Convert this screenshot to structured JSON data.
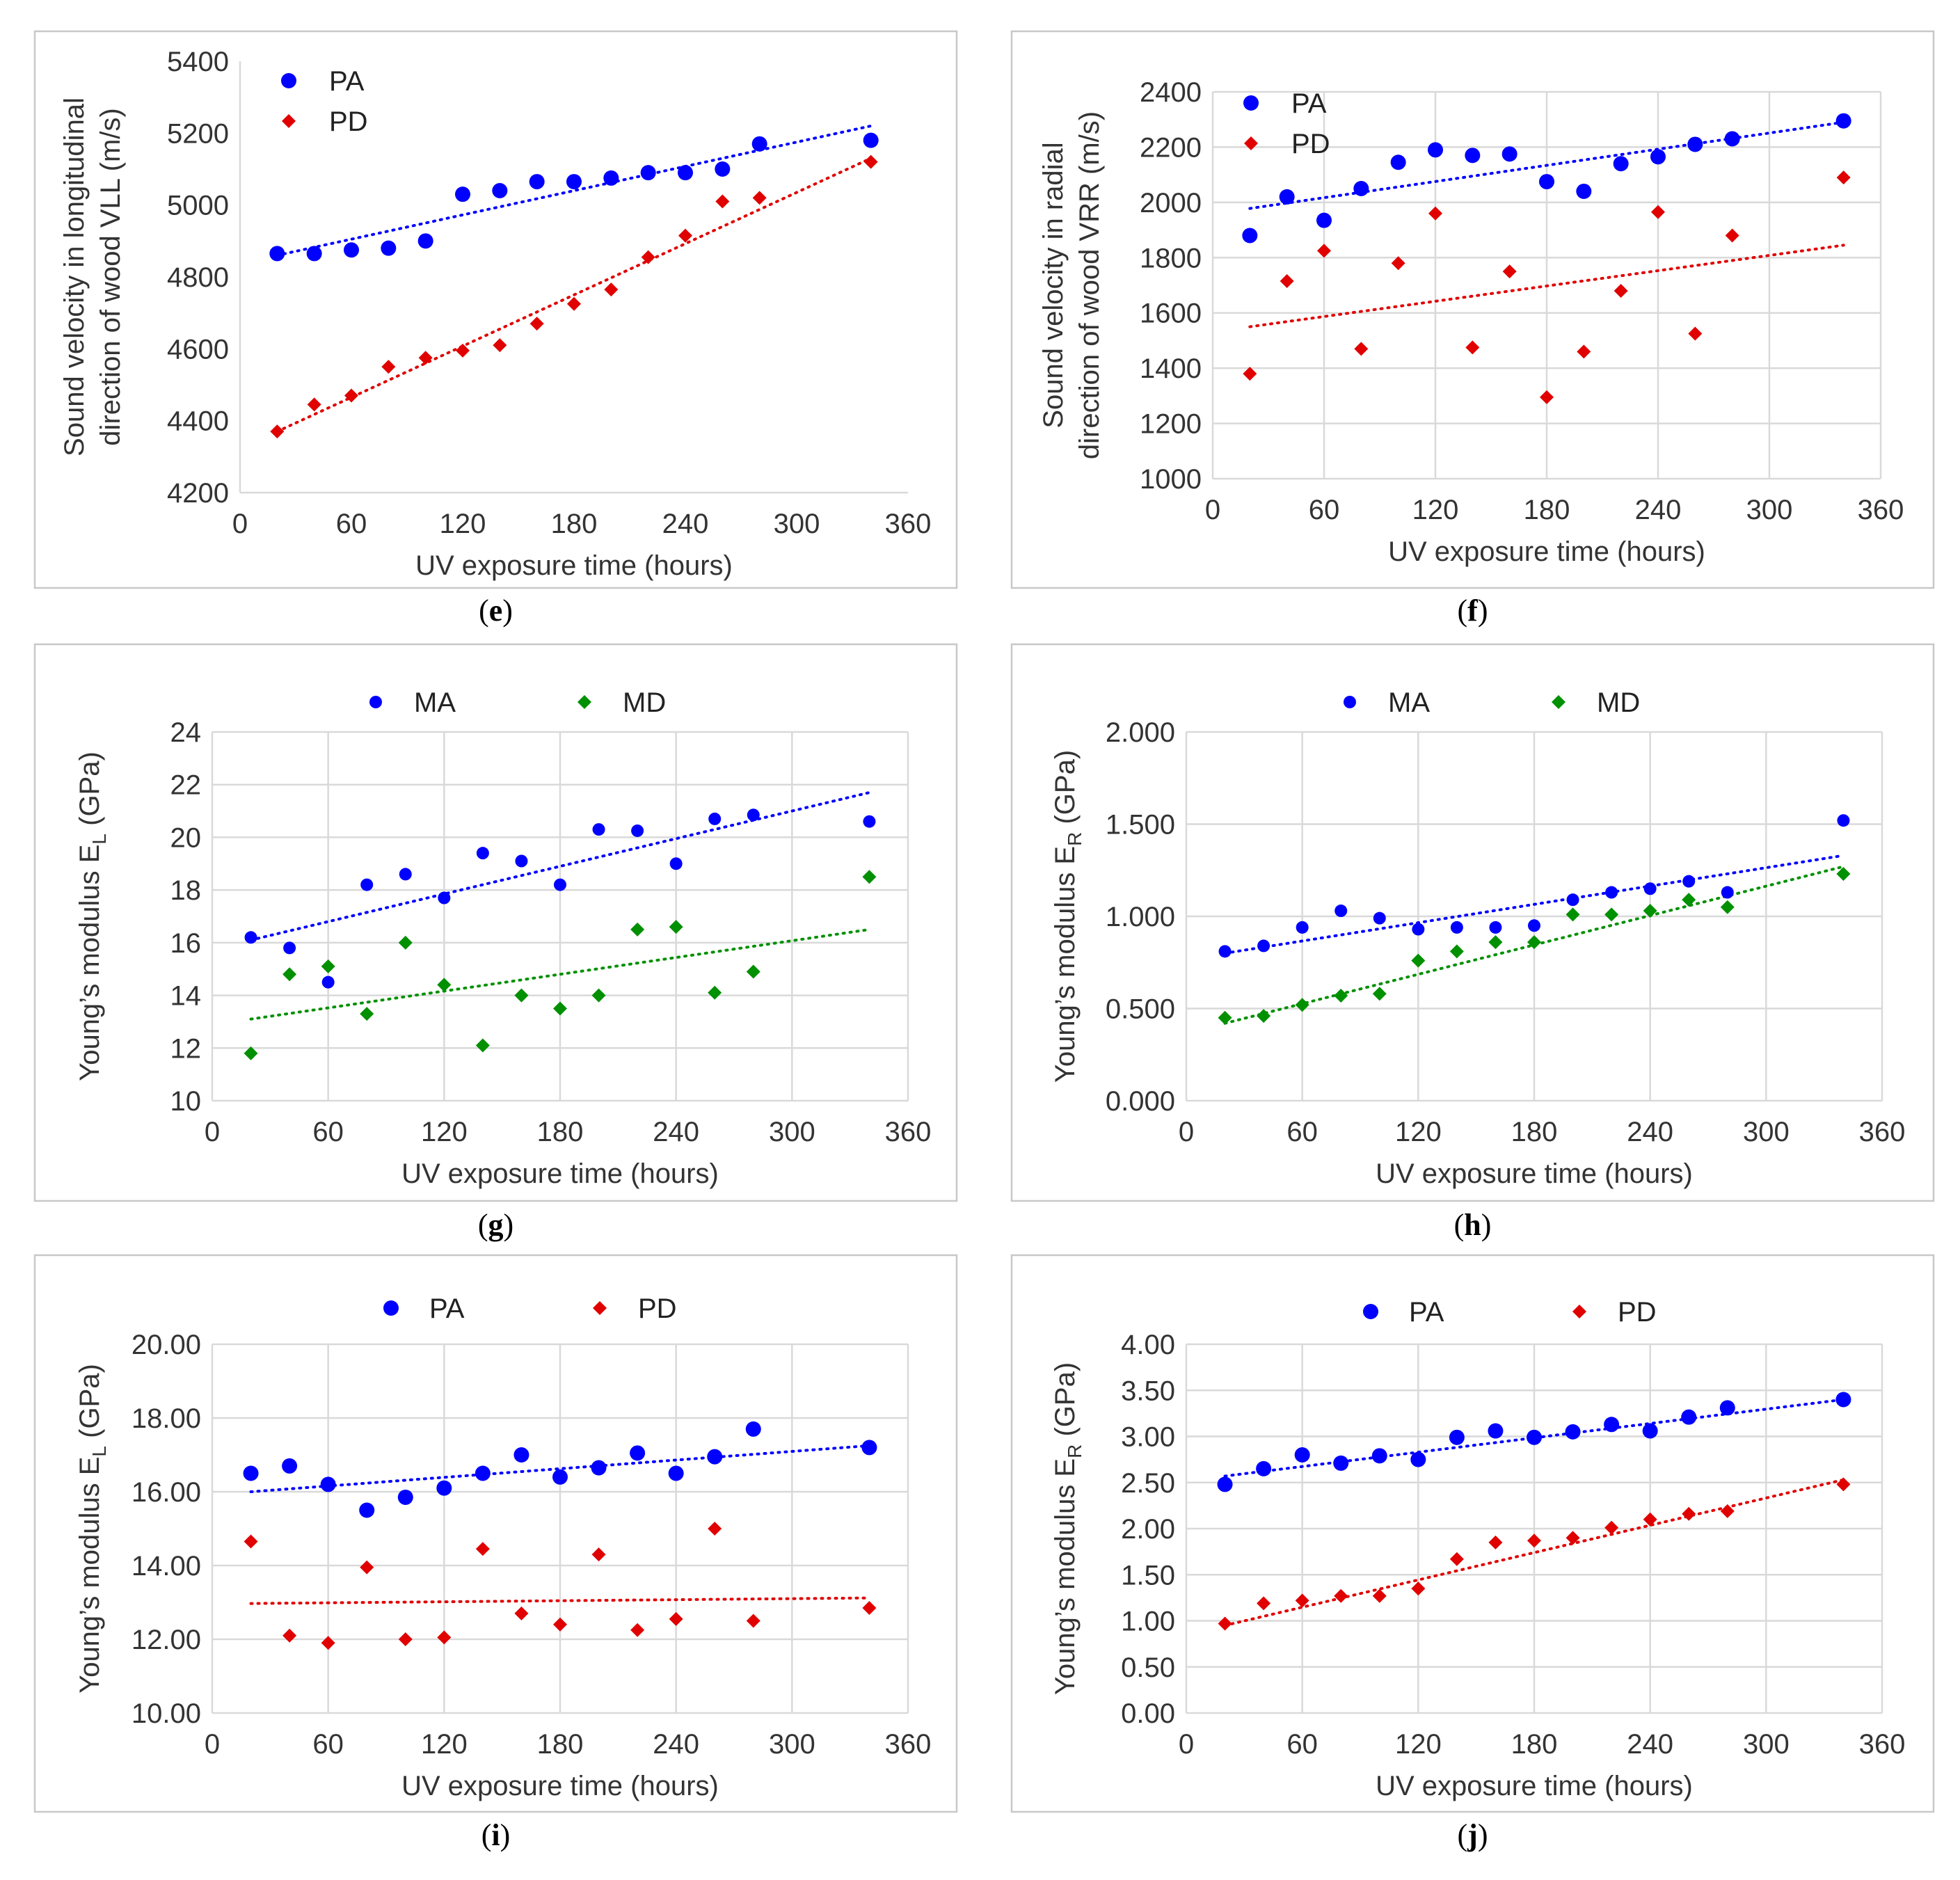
{
  "chart_data": [
    {
      "panel": "e",
      "caption_letter": "e",
      "type": "scatter",
      "xlabel": "UV exposure time (hours)",
      "ylabel": [
        "Sound velocity in longitudinal",
        "direction of wood VLL (m/s)"
      ],
      "xlim": [
        0,
        360
      ],
      "xticks": [
        0,
        60,
        120,
        180,
        240,
        300,
        360
      ],
      "ylim": [
        4200,
        5400
      ],
      "yticks": [
        4200,
        4400,
        4600,
        4800,
        5000,
        5200,
        5400
      ],
      "grid": false,
      "legend_position": "top-left-vertical",
      "series": [
        {
          "name": "PA",
          "color": "#0000ff",
          "marker": "circle",
          "x": [
            20,
            40,
            60,
            80,
            100,
            120,
            140,
            160,
            180,
            200,
            220,
            240,
            260,
            280,
            340
          ],
          "y": [
            4865,
            4865,
            4875,
            4880,
            4900,
            5030,
            5040,
            5065,
            5065,
            5075,
            5090,
            5090,
            5100,
            5170,
            5180
          ],
          "trend": [
            [
              20,
              4860
            ],
            [
              340,
              5220
            ]
          ]
        },
        {
          "name": "PD",
          "color": "#e00000",
          "marker": "diamond",
          "x": [
            20,
            40,
            60,
            80,
            100,
            120,
            140,
            160,
            180,
            200,
            220,
            240,
            260,
            280,
            340
          ],
          "y": [
            4370,
            4445,
            4470,
            4550,
            4575,
            4595,
            4610,
            4670,
            4725,
            4765,
            4855,
            4915,
            5010,
            5020,
            5120
          ],
          "trend": [
            [
              20,
              4370
            ],
            [
              340,
              5130
            ]
          ]
        }
      ]
    },
    {
      "panel": "f",
      "caption_letter": "f",
      "type": "scatter",
      "xlabel": "UV exposure time (hours)",
      "ylabel": [
        "Sound velocity in radial",
        "direction of wood VRR (m/s)"
      ],
      "xlim": [
        0,
        360
      ],
      "xticks": [
        0,
        60,
        120,
        180,
        240,
        300,
        360
      ],
      "ylim": [
        1000,
        2400
      ],
      "yticks": [
        1000,
        1200,
        1400,
        1600,
        1800,
        2000,
        2200,
        2400
      ],
      "grid": true,
      "legend_position": "top-left-vertical",
      "series": [
        {
          "name": "PA",
          "color": "#0000ff",
          "marker": "circle",
          "x": [
            20,
            40,
            60,
            80,
            100,
            120,
            140,
            160,
            180,
            200,
            220,
            240,
            260,
            280,
            340
          ],
          "y": [
            1880,
            2020,
            1935,
            2050,
            2145,
            2190,
            2170,
            2175,
            2075,
            2040,
            2140,
            2165,
            2210,
            2230,
            2295
          ],
          "trend": [
            [
              20,
              1978
            ],
            [
              340,
              2290
            ]
          ]
        },
        {
          "name": "PD",
          "color": "#e00000",
          "marker": "diamond",
          "x": [
            20,
            40,
            60,
            80,
            100,
            120,
            140,
            160,
            180,
            200,
            220,
            240,
            260,
            280,
            340
          ],
          "y": [
            1380,
            1715,
            1825,
            1470,
            1780,
            1960,
            1475,
            1750,
            1295,
            1460,
            1680,
            1965,
            1525,
            1880,
            2090
          ],
          "trend": [
            [
              20,
              1550
            ],
            [
              340,
              1845
            ]
          ]
        }
      ]
    },
    {
      "panel": "g",
      "caption_letter": "g",
      "type": "scatter",
      "xlabel": "UV exposure time (hours)",
      "ylabel": [
        "Young’s modulus E",
        "L",
        " (GPa)"
      ],
      "xlim": [
        0,
        360
      ],
      "xticks": [
        0,
        60,
        120,
        180,
        240,
        300,
        360
      ],
      "ylim": [
        10,
        24
      ],
      "yticks": [
        10,
        12,
        14,
        16,
        18,
        20,
        22,
        24
      ],
      "grid": true,
      "legend_position": "top-horizontal",
      "series": [
        {
          "name": "MA",
          "color": "#0000ff",
          "marker": "circle-small",
          "x": [
            20,
            40,
            60,
            80,
            100,
            120,
            140,
            160,
            180,
            200,
            220,
            240,
            260,
            280,
            340
          ],
          "y": [
            16.2,
            15.8,
            14.5,
            18.2,
            18.6,
            17.7,
            19.4,
            19.1,
            18.2,
            20.3,
            20.25,
            19.0,
            20.7,
            20.85,
            20.6
          ],
          "trend": [
            [
              20,
              16.1
            ],
            [
              340,
              21.7
            ]
          ]
        },
        {
          "name": "MD",
          "color": "#009000",
          "marker": "diamond",
          "x": [
            20,
            40,
            60,
            80,
            100,
            120,
            140,
            160,
            180,
            200,
            220,
            240,
            260,
            280,
            340
          ],
          "y": [
            11.8,
            14.8,
            15.1,
            13.3,
            16.0,
            14.4,
            12.1,
            14.0,
            13.5,
            14.0,
            16.5,
            16.6,
            14.1,
            14.9,
            18.5
          ],
          "trend": [
            [
              20,
              13.1
            ],
            [
              340,
              16.5
            ]
          ]
        }
      ]
    },
    {
      "panel": "h",
      "caption_letter": "h",
      "type": "scatter",
      "xlabel": "UV exposure time (hours)",
      "ylabel": [
        "Young’s modulus E",
        "R",
        " (GPa)"
      ],
      "xlim": [
        0,
        360
      ],
      "xticks": [
        0,
        60,
        120,
        180,
        240,
        300,
        360
      ],
      "ylim": [
        0,
        2
      ],
      "yticks": [
        0,
        0.5,
        1.0,
        1.5,
        2.0
      ],
      "ytick_labels": [
        "0.000",
        "0.500",
        "1.000",
        "1.500",
        "2.000"
      ],
      "grid": true,
      "legend_position": "top-horizontal",
      "series": [
        {
          "name": "MA",
          "color": "#0000ff",
          "marker": "circle-small",
          "x": [
            20,
            40,
            60,
            80,
            100,
            120,
            140,
            160,
            180,
            200,
            220,
            240,
            260,
            280,
            340
          ],
          "y": [
            0.81,
            0.84,
            0.94,
            1.03,
            0.99,
            0.93,
            0.94,
            0.94,
            0.95,
            1.09,
            1.13,
            1.15,
            1.19,
            1.13,
            1.52
          ],
          "trend": [
            [
              20,
              0.8
            ],
            [
              340,
              1.33
            ]
          ]
        },
        {
          "name": "MD",
          "color": "#009000",
          "marker": "diamond",
          "x": [
            20,
            40,
            60,
            80,
            100,
            120,
            140,
            160,
            180,
            200,
            220,
            240,
            260,
            280,
            340
          ],
          "y": [
            0.45,
            0.46,
            0.52,
            0.57,
            0.58,
            0.76,
            0.81,
            0.86,
            0.86,
            1.01,
            1.01,
            1.03,
            1.09,
            1.05,
            1.23
          ],
          "trend": [
            [
              20,
              0.42
            ],
            [
              340,
              1.27
            ]
          ]
        }
      ]
    },
    {
      "panel": "i",
      "caption_letter": "i",
      "type": "scatter",
      "xlabel": "UV exposure time (hours)",
      "ylabel": [
        "Young’s modulus E",
        "L",
        " (GPa)"
      ],
      "xlim": [
        0,
        360
      ],
      "xticks": [
        0,
        60,
        120,
        180,
        240,
        300,
        360
      ],
      "ylim": [
        10,
        20
      ],
      "yticks": [
        10,
        12,
        14,
        16,
        18,
        20
      ],
      "ytick_labels": [
        "10.00",
        "12.00",
        "14.00",
        "16.00",
        "18.00",
        "20.00"
      ],
      "grid": true,
      "legend_position": "top-horizontal",
      "series": [
        {
          "name": "PA",
          "color": "#0000ff",
          "marker": "circle",
          "x": [
            20,
            40,
            60,
            80,
            100,
            120,
            140,
            160,
            180,
            200,
            220,
            240,
            260,
            280,
            340
          ],
          "y": [
            16.5,
            16.7,
            16.2,
            15.5,
            15.85,
            16.1,
            16.5,
            17.0,
            16.4,
            16.65,
            17.05,
            16.5,
            16.95,
            17.7,
            17.2
          ],
          "trend": [
            [
              20,
              16.0
            ],
            [
              340,
              17.25
            ]
          ]
        },
        {
          "name": "PD",
          "color": "#e00000",
          "marker": "diamond",
          "x": [
            20,
            40,
            60,
            80,
            100,
            120,
            140,
            160,
            180,
            200,
            220,
            240,
            260,
            280,
            340
          ],
          "y": [
            14.65,
            12.1,
            11.9,
            13.95,
            12.0,
            12.05,
            14.45,
            12.7,
            12.4,
            14.3,
            12.25,
            12.55,
            15.0,
            12.5,
            12.85
          ],
          "trend": [
            [
              20,
              12.97
            ],
            [
              340,
              13.12
            ]
          ]
        }
      ]
    },
    {
      "panel": "j",
      "caption_letter": "j",
      "type": "scatter",
      "xlabel": "UV exposure time (hours)",
      "ylabel": [
        "Young’s modulus E",
        "R",
        " (GPa)"
      ],
      "xlim": [
        0,
        360
      ],
      "xticks": [
        0,
        60,
        120,
        180,
        240,
        300,
        360
      ],
      "ylim": [
        0,
        4
      ],
      "yticks": [
        0,
        0.5,
        1.0,
        1.5,
        2.0,
        2.5,
        3.0,
        3.5,
        4.0
      ],
      "ytick_labels": [
        "0.00",
        "0.50",
        "1.00",
        "1.50",
        "2.00",
        "2.50",
        "3.00",
        "3.50",
        "4.00"
      ],
      "grid": true,
      "legend_position": "top-horizontal",
      "series": [
        {
          "name": "PA",
          "color": "#0000ff",
          "marker": "circle",
          "x": [
            20,
            40,
            60,
            80,
            100,
            120,
            140,
            160,
            180,
            200,
            220,
            240,
            260,
            280,
            340
          ],
          "y": [
            2.48,
            2.65,
            2.8,
            2.71,
            2.79,
            2.75,
            2.99,
            3.06,
            2.99,
            3.05,
            3.13,
            3.06,
            3.21,
            3.31,
            3.4
          ],
          "trend": [
            [
              20,
              2.57
            ],
            [
              340,
              3.4
            ]
          ]
        },
        {
          "name": "PD",
          "color": "#e00000",
          "marker": "diamond",
          "x": [
            20,
            40,
            60,
            80,
            100,
            120,
            140,
            160,
            180,
            200,
            220,
            240,
            260,
            280,
            340
          ],
          "y": [
            0.97,
            1.19,
            1.22,
            1.27,
            1.27,
            1.35,
            1.67,
            1.85,
            1.87,
            1.9,
            2.01,
            2.1,
            2.16,
            2.19,
            2.48
          ],
          "trend": [
            [
              20,
              0.95
            ],
            [
              340,
              2.53
            ]
          ]
        }
      ]
    }
  ]
}
